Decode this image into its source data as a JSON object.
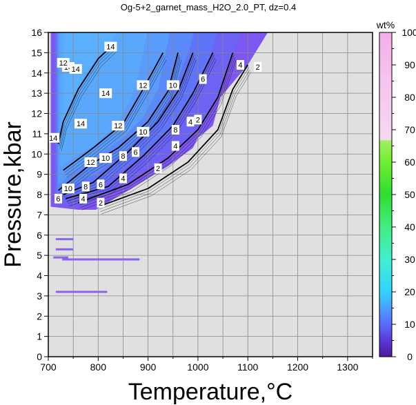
{
  "chart_data": {
    "type": "heatmap",
    "title": "Og-5+2_garnet_mass_H2O_2.0_PT, dz=0.4",
    "xlabel": "Temperature,°C",
    "ylabel": "Pressure,kbar",
    "xlim": [
      700,
      1350
    ],
    "ylim": [
      0,
      16
    ],
    "x_ticks": [
      700,
      800,
      900,
      1000,
      1100,
      1200,
      1300
    ],
    "y_ticks": [
      0,
      1,
      2,
      3,
      4,
      5,
      6,
      7,
      8,
      9,
      10,
      11,
      12,
      13,
      14,
      15,
      16
    ],
    "grid": true,
    "background_color": "#e0e0e0",
    "colorbar": {
      "label": "wt%",
      "range": [
        0,
        100
      ],
      "ticks": [
        0,
        10,
        20,
        30,
        40,
        50,
        60,
        70,
        80,
        90,
        100
      ],
      "placement": "right"
    },
    "contour_levels": [
      2,
      4,
      6,
      8,
      10,
      12,
      14
    ],
    "contours": [
      {
        "level": 2,
        "points": [
          [
            800,
            7.4
          ],
          [
            900,
            8.3
          ],
          [
            980,
            9.6
          ],
          [
            1040,
            11.2
          ],
          [
            1070,
            13.2
          ],
          [
            1100,
            14.4
          ]
        ],
        "labels": [
          [
            805,
            7.6
          ],
          [
            920,
            9.3
          ],
          [
            1000,
            11.7
          ],
          [
            1120,
            14.3
          ]
        ]
      },
      {
        "level": 4,
        "points": [
          [
            760,
            7.6
          ],
          [
            860,
            8.5
          ],
          [
            940,
            9.8
          ],
          [
            1000,
            11.2
          ],
          [
            1040,
            12.8
          ],
          [
            1070,
            15.0
          ]
        ],
        "labels": [
          [
            770,
            7.8
          ],
          [
            850,
            8.8
          ],
          [
            955,
            10.4
          ],
          [
            985,
            11.6
          ],
          [
            1085,
            14.4
          ]
        ]
      },
      {
        "level": 6,
        "points": [
          [
            735,
            7.8
          ],
          [
            820,
            8.4
          ],
          [
            890,
            9.9
          ],
          [
            950,
            11.4
          ],
          [
            990,
            13.0
          ],
          [
            1030,
            15.0
          ]
        ],
        "labels": [
          [
            720,
            7.8
          ],
          [
            805,
            8.5
          ],
          [
            875,
            10.1
          ],
          [
            955,
            11.2
          ],
          [
            1010,
            13.7
          ]
        ]
      },
      {
        "level": 8,
        "points": [
          [
            730,
            8.0
          ],
          [
            790,
            8.6
          ],
          [
            860,
            10.1
          ],
          [
            920,
            11.6
          ],
          [
            960,
            13.1
          ],
          [
            990,
            15.0
          ]
        ],
        "labels": [
          [
            775,
            8.4
          ],
          [
            850,
            9.9
          ],
          [
            955,
            11.2
          ]
        ]
      },
      {
        "level": 10,
        "points": [
          [
            720,
            8.2
          ],
          [
            780,
            9.4
          ],
          [
            840,
            10.3
          ],
          [
            900,
            11.6
          ],
          [
            940,
            13.1
          ],
          [
            960,
            15.0
          ]
        ],
        "labels": [
          [
            740,
            8.3
          ],
          [
            815,
            9.8
          ],
          [
            890,
            11.1
          ],
          [
            950,
            13.4
          ],
          [
            740,
            14.3
          ]
        ]
      },
      {
        "level": 12,
        "points": [
          [
            730,
            9.2
          ],
          [
            790,
            10.3
          ],
          [
            850,
            11.5
          ],
          [
            890,
            13.2
          ],
          [
            930,
            15.0
          ]
        ],
        "labels": [
          [
            785,
            9.6
          ],
          [
            840,
            11.4
          ],
          [
            890,
            13.4
          ],
          [
            730,
            14.5
          ]
        ]
      },
      {
        "level": 14,
        "points": [
          [
            720,
            10.5
          ],
          [
            730,
            11.6
          ],
          [
            760,
            13.2
          ],
          [
            800,
            14.7
          ],
          [
            830,
            15.4
          ]
        ],
        "labels": [
          [
            765,
            11.5
          ],
          [
            815,
            13.0
          ],
          [
            755,
            14.2
          ],
          [
            825,
            15.3
          ],
          [
            710,
            10.8
          ]
        ]
      }
    ],
    "isolated_segments": [
      {
        "x": [
          715,
          750
        ],
        "y": 5.8
      },
      {
        "x": [
          715,
          750
        ],
        "y": 5.3
      },
      {
        "x": [
          710,
          740
        ],
        "y": 4.9
      },
      {
        "x": [
          728,
          883
        ],
        "y": 4.8
      },
      {
        "x": [
          715,
          818
        ],
        "y": 3.2
      }
    ]
  }
}
